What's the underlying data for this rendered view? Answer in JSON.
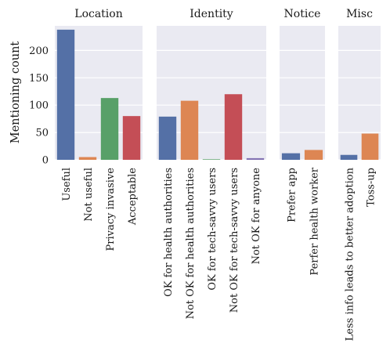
{
  "chart_data": {
    "type": "bar",
    "ylabel": "Mentioning count",
    "ylim": [
      0,
      245
    ],
    "yticks": [
      0,
      50,
      100,
      150,
      200
    ],
    "grid": true,
    "facets": [
      {
        "title": "Location",
        "bars": [
          {
            "label": "Useful",
            "value": 238,
            "color": "#5470a6"
          },
          {
            "label": "Not useful",
            "value": 5,
            "color": "#dd8653"
          },
          {
            "label": "Privacy invasive",
            "value": 113,
            "color": "#58a068"
          },
          {
            "label": "Acceptable",
            "value": 80,
            "color": "#c44e56"
          }
        ]
      },
      {
        "title": "Identity",
        "bars": [
          {
            "label": "OK for health authorities",
            "value": 79,
            "color": "#5470a6"
          },
          {
            "label": "Not OK for health authorities",
            "value": 108,
            "color": "#dd8653"
          },
          {
            "label": "OK for tech-savvy users",
            "value": 1,
            "color": "#58a068"
          },
          {
            "label": "Not OK for tech-savvy users",
            "value": 120,
            "color": "#c44e56"
          },
          {
            "label": "Not OK for anyone",
            "value": 3,
            "color": "#8372b2"
          }
        ]
      },
      {
        "title": "Notice",
        "bars": [
          {
            "label": "Prefer app",
            "value": 12,
            "color": "#5470a6"
          },
          {
            "label": "Perfer health worker",
            "value": 18,
            "color": "#dd8653"
          }
        ]
      },
      {
        "title": "Misc",
        "bars": [
          {
            "label": "Less info leads to better adoption",
            "value": 9,
            "color": "#5470a6"
          },
          {
            "label": "Toss-up",
            "value": 48,
            "color": "#dd8653"
          }
        ]
      }
    ]
  },
  "colors": {
    "panel_background": "#eaeaf2",
    "grid": "#ffffff"
  }
}
